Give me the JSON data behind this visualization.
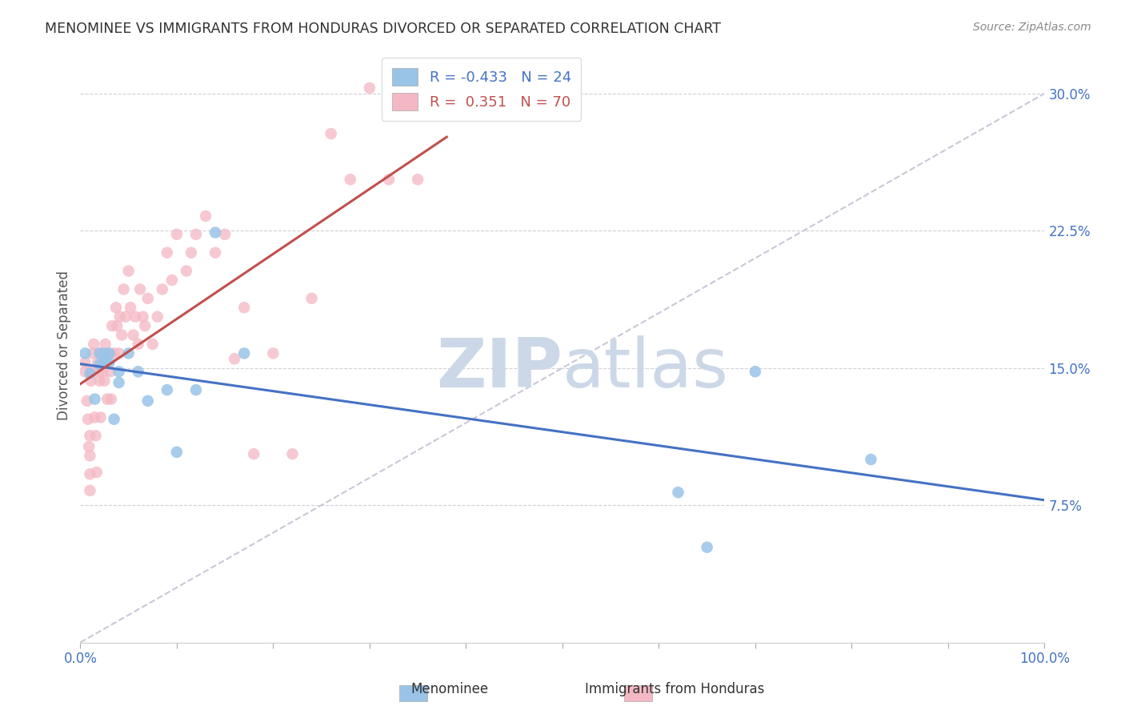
{
  "title": "MENOMINEE VS IMMIGRANTS FROM HONDURAS DIVORCED OR SEPARATED CORRELATION CHART",
  "source": "Source: ZipAtlas.com",
  "ylabel": "Divorced or Separated",
  "xlabel_menominee": "Menominee",
  "xlabel_honduras": "Immigrants from Honduras",
  "xlim": [
    0.0,
    1.0
  ],
  "ylim": [
    0.0,
    0.325
  ],
  "xtick_positions": [
    0.0,
    0.1,
    0.2,
    0.3,
    0.4,
    0.5,
    0.6,
    0.7,
    0.8,
    0.9,
    1.0
  ],
  "yticks": [
    0.075,
    0.15,
    0.225,
    0.3
  ],
  "ytick_labels": [
    "7.5%",
    "15.0%",
    "22.5%",
    "30.0%"
  ],
  "legend_r_menominee": "-0.433",
  "legend_n_menominee": "24",
  "legend_r_honduras": "0.351",
  "legend_n_honduras": "70",
  "color_menominee": "#99c4e8",
  "color_honduras": "#f4b8c4",
  "line_color_menominee": "#4472c4",
  "line_color_honduras": "#c0504d",
  "ref_line_color": "#c8c8d8",
  "watermark_color": "#ccd8e8",
  "menominee_x": [
    0.005,
    0.01,
    0.015,
    0.02,
    0.02,
    0.025,
    0.025,
    0.03,
    0.03,
    0.035,
    0.04,
    0.04,
    0.05,
    0.06,
    0.07,
    0.09,
    0.1,
    0.12,
    0.14,
    0.17,
    0.62,
    0.65,
    0.7,
    0.82
  ],
  "menominee_y": [
    0.158,
    0.147,
    0.133,
    0.152,
    0.158,
    0.153,
    0.158,
    0.153,
    0.158,
    0.122,
    0.142,
    0.148,
    0.158,
    0.148,
    0.132,
    0.138,
    0.104,
    0.138,
    0.224,
    0.158,
    0.082,
    0.052,
    0.148,
    0.1
  ],
  "honduras_x": [
    0.005,
    0.005,
    0.007,
    0.008,
    0.009,
    0.01,
    0.01,
    0.01,
    0.01,
    0.011,
    0.012,
    0.013,
    0.014,
    0.015,
    0.016,
    0.017,
    0.018,
    0.019,
    0.02,
    0.021,
    0.022,
    0.023,
    0.025,
    0.026,
    0.027,
    0.028,
    0.03,
    0.031,
    0.032,
    0.033,
    0.035,
    0.037,
    0.038,
    0.04,
    0.041,
    0.043,
    0.045,
    0.047,
    0.05,
    0.052,
    0.055,
    0.057,
    0.06,
    0.062,
    0.065,
    0.067,
    0.07,
    0.075,
    0.08,
    0.085,
    0.09,
    0.095,
    0.1,
    0.11,
    0.115,
    0.12,
    0.13,
    0.14,
    0.15,
    0.16,
    0.17,
    0.18,
    0.2,
    0.22,
    0.24,
    0.26,
    0.28,
    0.3,
    0.32,
    0.35
  ],
  "honduras_y": [
    0.148,
    0.153,
    0.132,
    0.122,
    0.107,
    0.092,
    0.083,
    0.102,
    0.113,
    0.143,
    0.148,
    0.158,
    0.163,
    0.123,
    0.113,
    0.093,
    0.153,
    0.148,
    0.143,
    0.123,
    0.158,
    0.148,
    0.143,
    0.163,
    0.153,
    0.133,
    0.158,
    0.148,
    0.133,
    0.173,
    0.158,
    0.183,
    0.173,
    0.158,
    0.178,
    0.168,
    0.193,
    0.178,
    0.203,
    0.183,
    0.168,
    0.178,
    0.163,
    0.193,
    0.178,
    0.173,
    0.188,
    0.163,
    0.178,
    0.193,
    0.213,
    0.198,
    0.223,
    0.203,
    0.213,
    0.223,
    0.233,
    0.213,
    0.223,
    0.155,
    0.183,
    0.103,
    0.158,
    0.103,
    0.188,
    0.278,
    0.253,
    0.303,
    0.253,
    0.253
  ]
}
